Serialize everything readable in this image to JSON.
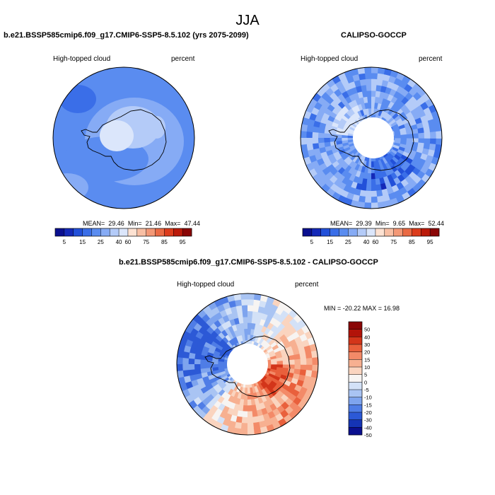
{
  "season": "JJA",
  "panels": [
    {
      "title": "b.e21.BSSP585cmip6.f09_g17.CMIP6-SSP5-8.5.102 (yrs 2075-2099)",
      "variable": "High-topped cloud",
      "units": "percent",
      "stats": {
        "mean_label": "MEAN=",
        "mean": "29.46",
        "min_label": "Min=",
        "min": "21.46",
        "max_label": "Max=",
        "max": "47.44"
      },
      "field_description": "smooth model field, mostly 25-40 percent",
      "colorbar_ticks": [
        "5",
        "15",
        "25",
        "40",
        "60",
        "75",
        "85",
        "95"
      ]
    },
    {
      "title": "CALIPSO-GOCCP",
      "variable": "High-topped cloud",
      "units": "percent",
      "stats": {
        "mean_label": "MEAN=",
        "mean": "29.39",
        "min_label": "Min=",
        "min": "9.65",
        "max_label": "Max=",
        "max": "52.44"
      },
      "field_description": "noisy observation field with missing data near the pole",
      "colorbar_ticks": [
        "5",
        "15",
        "25",
        "40",
        "60",
        "75",
        "85",
        "95"
      ]
    },
    {
      "title": "b.e21.BSSP585cmip6.f09_g17.CMIP6-SSP5-8.5.102 - CALIPSO-GOCCP",
      "variable": "High-topped cloud",
      "units": "percent",
      "stats_text": "MIN = -20.22 MAX =  16.98",
      "colorbar_ticks": [
        "50",
        "40",
        "30",
        "20",
        "15",
        "10",
        "5",
        "0",
        "-5",
        "-10",
        "-15",
        "-20",
        "-30",
        "-40",
        "-50"
      ]
    }
  ],
  "colors": {
    "seq_palette": [
      "#0a0f8f",
      "#1429b8",
      "#2250d9",
      "#3a6ee8",
      "#5a8cf0",
      "#86abf5",
      "#b4cbf8",
      "#dbe6fb",
      "#fde2d2",
      "#f8bfa4",
      "#f39876",
      "#ea6a44",
      "#dc3c1c",
      "#bb1a0a",
      "#8a0505"
    ],
    "diff_palette": [
      "#8a0505",
      "#b21309",
      "#d3351a",
      "#e9603c",
      "#f38a68",
      "#f7b091",
      "#fad4bf",
      "#f7f4f2",
      "#d3e1f7",
      "#a9c4f3",
      "#7ea4ee",
      "#4f7de6",
      "#2c59d6",
      "#1534b5",
      "#0a0f8f"
    ]
  }
}
